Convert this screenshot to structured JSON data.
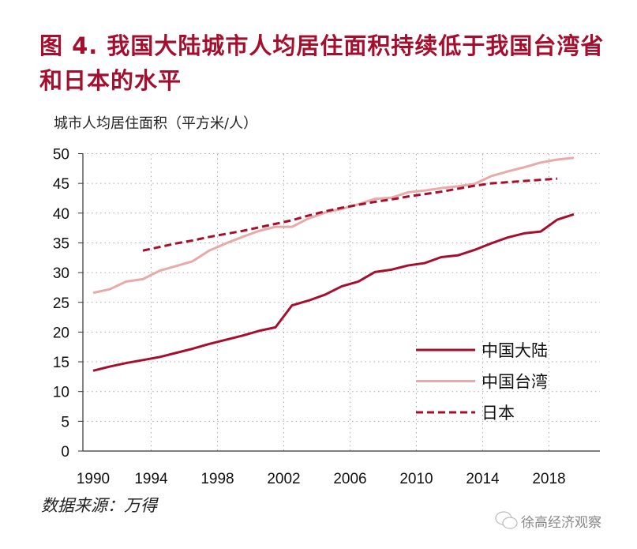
{
  "title": "图  4.   我国大陆城市人均居住面积持续低于我国台湾省和日本的水平",
  "source": "数据来源：万得",
  "watermark": "徐高经济观察",
  "chart_data": {
    "type": "line",
    "ylabel": "城市人均居住面积（平方米/人）",
    "ylim": [
      0,
      50
    ],
    "yticks": [
      0,
      5,
      10,
      15,
      20,
      25,
      30,
      35,
      40,
      45,
      50
    ],
    "xticks": [
      1990,
      1994,
      1998,
      2002,
      2006,
      2010,
      2014,
      2018
    ],
    "grid": true,
    "legend_position": "bottom-right",
    "series": [
      {
        "name": "中国大陆",
        "color": "#a50f2d",
        "style": "solid",
        "start": 1990,
        "values": [
          13.5,
          14.2,
          14.8,
          15.3,
          15.8,
          16.5,
          17.2,
          18.0,
          18.7,
          19.4,
          20.2,
          20.8,
          24.5,
          25.3,
          26.3,
          27.7,
          28.5,
          30.1,
          30.5,
          31.2,
          31.6,
          32.6,
          32.9,
          33.8,
          34.9,
          35.9,
          36.6,
          36.9,
          38.9,
          39.8
        ]
      },
      {
        "name": "中国台湾",
        "color": "#e8a9a9",
        "style": "solid",
        "start": 1990,
        "values": [
          26.6,
          27.2,
          28.5,
          28.9,
          30.3,
          31.1,
          31.9,
          33.7,
          34.9,
          36.0,
          37.0,
          37.7,
          37.7,
          39.1,
          40.1,
          40.7,
          41.5,
          42.4,
          42.6,
          43.5,
          43.8,
          44.2,
          44.5,
          44.9,
          46.2,
          47.0,
          47.7,
          48.5,
          49.0,
          49.3
        ]
      },
      {
        "name": "日本",
        "color": "#a50f2d",
        "style": "dashed",
        "start": 1993,
        "values": [
          33.7,
          34.3,
          34.9,
          35.4,
          36.0,
          36.5,
          37.0,
          37.6,
          38.2,
          38.8,
          39.6,
          40.3,
          40.9,
          41.4,
          41.9,
          42.3,
          42.8,
          43.2,
          43.6,
          44.1,
          44.6,
          45.0,
          45.2,
          45.4,
          45.6,
          45.8
        ]
      }
    ]
  }
}
